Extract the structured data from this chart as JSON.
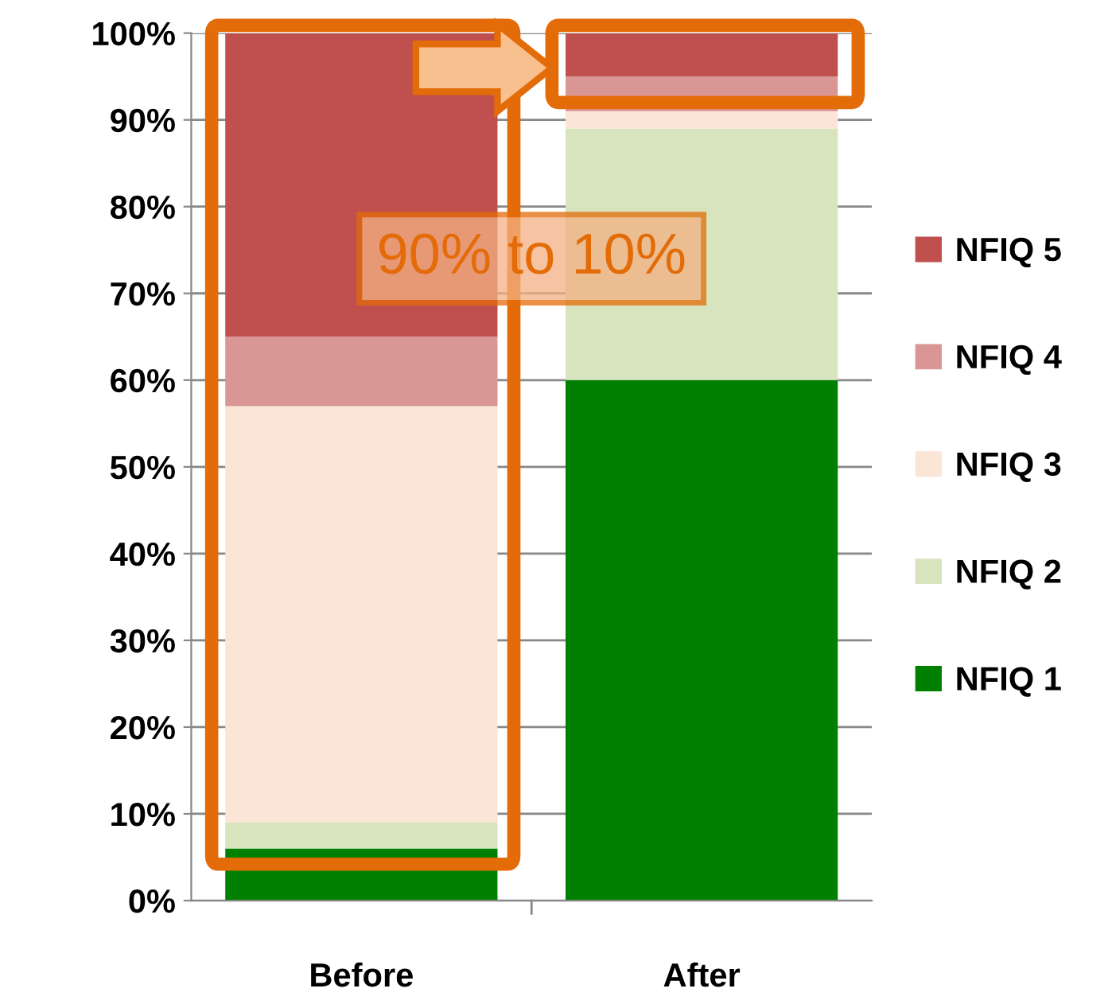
{
  "chart_data": {
    "type": "bar",
    "stacked": true,
    "categories": [
      "Before",
      "After"
    ],
    "series": [
      {
        "name": "NFIQ 1",
        "color": "#008000",
        "values": [
          6,
          60
        ]
      },
      {
        "name": "NFIQ 2",
        "color": "#d7e4bd",
        "values": [
          3,
          29
        ]
      },
      {
        "name": "NFIQ 3",
        "color": "#fbe5d6",
        "values": [
          48,
          2
        ]
      },
      {
        "name": "NFIQ 4",
        "color": "#d99694",
        "values": [
          8,
          4
        ]
      },
      {
        "name": "NFIQ 5",
        "color": "#c0504d",
        "values": [
          35,
          5
        ]
      }
    ],
    "ylim": [
      0,
      100
    ],
    "yticks": [
      {
        "value": 0,
        "label": "0%"
      },
      {
        "value": 10,
        "label": "10%"
      },
      {
        "value": 20,
        "label": "20%"
      },
      {
        "value": 30,
        "label": "30%"
      },
      {
        "value": 40,
        "label": "40%"
      },
      {
        "value": 50,
        "label": "50%"
      },
      {
        "value": 60,
        "label": "60%"
      },
      {
        "value": 70,
        "label": "70%"
      },
      {
        "value": 80,
        "label": "80%"
      },
      {
        "value": 90,
        "label": "90%"
      },
      {
        "value": 100,
        "label": "100%"
      }
    ],
    "grid": "y",
    "legend": "right",
    "annotations": [
      "90% to 10%"
    ]
  }
}
